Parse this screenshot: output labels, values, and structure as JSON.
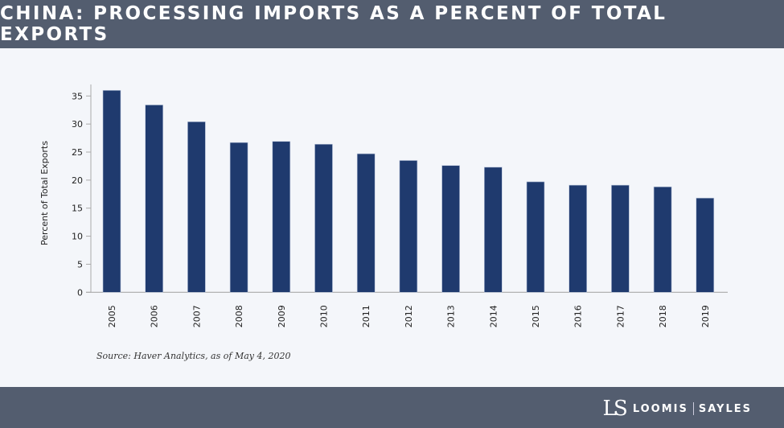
{
  "title": "CHINA: PROCESSING IMPORTS AS A PERCENT OF TOTAL EXPORTS",
  "source": "Source: Haver Analytics, as of May 4, 2020",
  "logo": {
    "left": "LOOMIS",
    "right": "SAYLES",
    "mark": "LS"
  },
  "colors": {
    "bar": "#1f3a6e",
    "header": "#535d6f",
    "background": "#f4f6fa"
  },
  "chart_data": {
    "type": "bar",
    "title": "CHINA: PROCESSING IMPORTS AS A PERCENT OF TOTAL EXPORTS",
    "xlabel": "",
    "ylabel": "Percent of Total Exports",
    "ylim": [
      0,
      35
    ],
    "yticks": [
      0,
      5,
      10,
      15,
      20,
      25,
      30,
      35
    ],
    "grid": false,
    "categories": [
      "2005",
      "2006",
      "2007",
      "2008",
      "2009",
      "2010",
      "2011",
      "2012",
      "2013",
      "2014",
      "2015",
      "2016",
      "2017",
      "2018",
      "2019"
    ],
    "values": [
      36.0,
      33.4,
      30.4,
      26.7,
      26.9,
      26.4,
      24.7,
      23.5,
      22.6,
      22.3,
      19.7,
      19.1,
      19.1,
      18.8,
      16.8
    ]
  }
}
